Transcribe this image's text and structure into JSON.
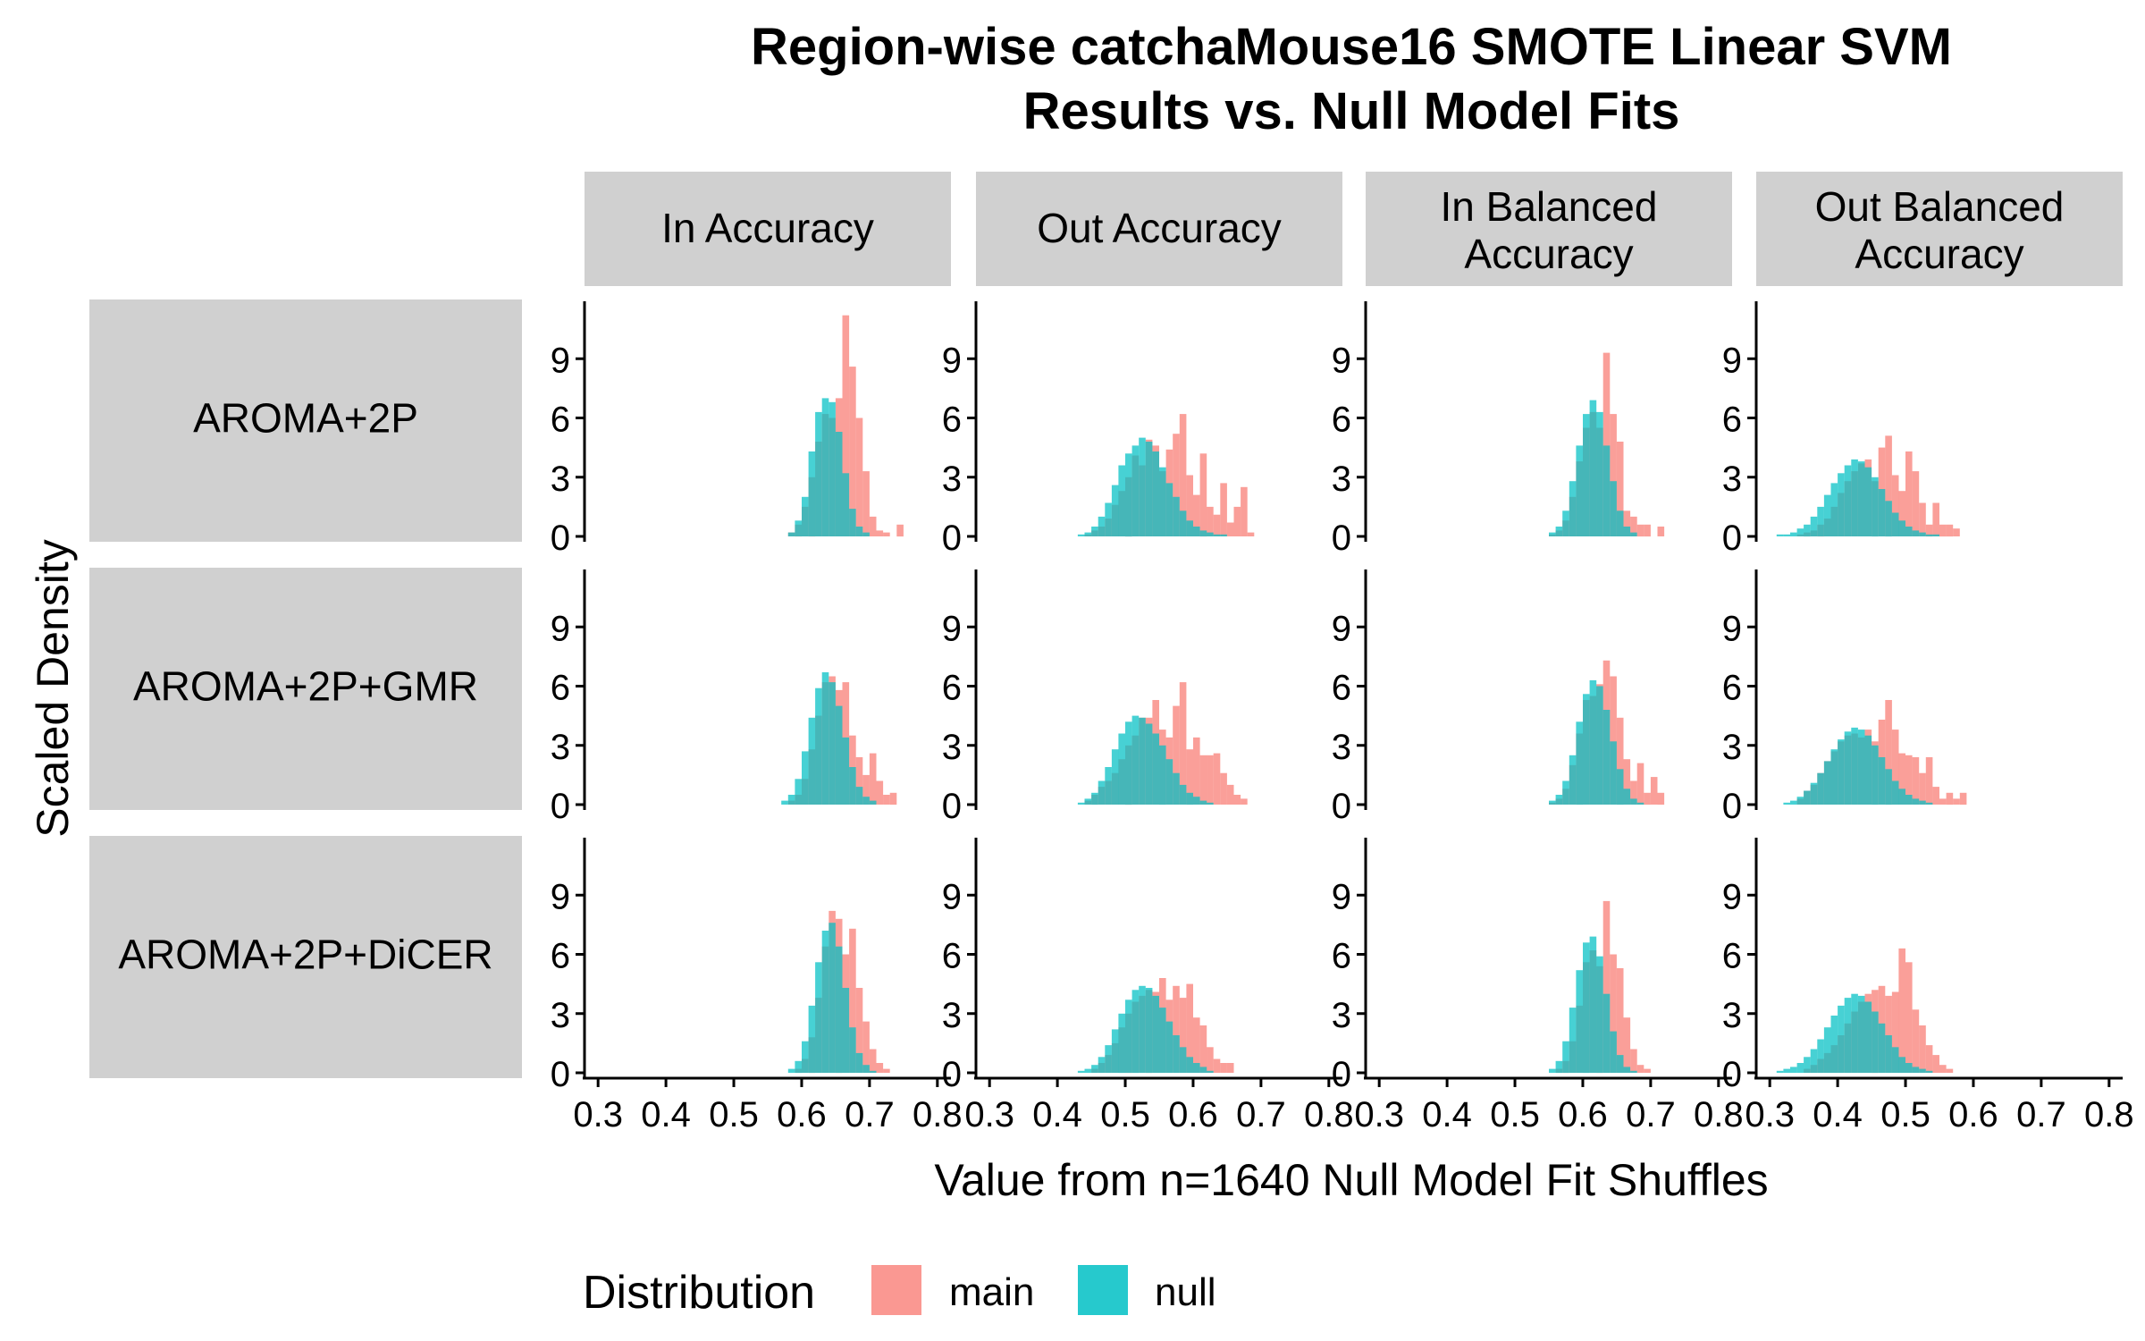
{
  "colors": {
    "main": "#F8766D",
    "null": "#00BFC4",
    "strip": "#D0D0D0",
    "axis": "#000000"
  },
  "chart_data": {
    "type": "histogram",
    "title": "Region-wise catchaMouse16 SMOTE Linear SVM\nResults vs. Null Model Fits",
    "xlabel": "Value from n=1640 Null Model Fit Shuffles",
    "ylabel": "Scaled Density",
    "xlim": [
      0.28,
      0.82
    ],
    "ylim": [
      0,
      12
    ],
    "x_ticks": [
      "0.3",
      "0.4",
      "0.5",
      "0.6",
      "0.7",
      "0.8"
    ],
    "y_ticks": [
      "0",
      "3",
      "6",
      "9"
    ],
    "bin_width": 0.01,
    "column_facets": [
      "In Accuracy",
      "Out Accuracy",
      "In Balanced\nAccuracy",
      "Out Balanced\nAccuracy"
    ],
    "row_facets": [
      "AROMA+2P",
      "AROMA+2P+GMR",
      "AROMA+2P+DiCER"
    ],
    "legend": {
      "title": "Distribution",
      "entries": [
        "main",
        "null"
      ],
      "position": "bottom"
    },
    "panels": [
      {
        "row": "AROMA+2P",
        "col": "In Accuracy",
        "main": {
          "x0": 0.58,
          "values": [
            0.2,
            0.6,
            1.5,
            3.0,
            4.8,
            6.2,
            6.0,
            7.0,
            11.2,
            8.6,
            6.0,
            3.3,
            1.0,
            0.3,
            0.2,
            0.0,
            0.6
          ]
        },
        "null": {
          "x0": 0.58,
          "values": [
            0.2,
            0.8,
            2.0,
            4.3,
            6.3,
            7.0,
            6.8,
            5.3,
            3.2,
            1.4,
            0.5,
            0.2
          ]
        }
      },
      {
        "row": "AROMA+2P",
        "col": "Out Accuracy",
        "main": {
          "x0": 0.44,
          "values": [
            0.1,
            0.3,
            0.5,
            0.9,
            1.6,
            2.3,
            3.0,
            4.1,
            3.6,
            4.9,
            4.6,
            3.3,
            4.4,
            5.2,
            6.2,
            3.1,
            2.1,
            4.2,
            1.5,
            1.1,
            2.7,
            0.7,
            1.5,
            2.5,
            0.2
          ]
        },
        "null": {
          "x0": 0.43,
          "values": [
            0.1,
            0.2,
            0.5,
            1.0,
            1.7,
            2.6,
            3.6,
            4.2,
            4.6,
            5.0,
            4.8,
            4.3,
            3.5,
            2.7,
            2.0,
            1.3,
            0.8,
            0.5,
            0.3,
            0.2,
            0.1,
            0.1
          ]
        }
      },
      {
        "row": "AROMA+2P",
        "col": "In Balanced\nAccuracy",
        "main": {
          "x0": 0.55,
          "values": [
            0.1,
            0.3,
            0.8,
            2.0,
            3.8,
            5.5,
            6.3,
            5.5,
            9.3,
            6.2,
            4.8,
            1.3,
            1.0,
            0.6,
            0.6,
            0.0,
            0.5
          ]
        },
        "null": {
          "x0": 0.55,
          "values": [
            0.2,
            0.5,
            1.3,
            2.8,
            4.6,
            6.2,
            6.9,
            6.3,
            4.6,
            2.8,
            1.3,
            0.5,
            0.2
          ]
        }
      },
      {
        "row": "AROMA+2P",
        "col": "Out Balanced\nAccuracy",
        "main": {
          "x0": 0.34,
          "values": [
            0.1,
            0.2,
            0.3,
            0.6,
            0.9,
            1.5,
            2.2,
            2.8,
            3.3,
            3.7,
            3.9,
            2.8,
            4.5,
            5.1,
            3.1,
            2.3,
            4.3,
            3.3,
            1.7,
            0.6,
            1.7,
            0.6,
            0.6,
            0.4
          ]
        },
        "null": {
          "x0": 0.31,
          "values": [
            0.1,
            0.1,
            0.2,
            0.4,
            0.6,
            1.0,
            1.5,
            2.1,
            2.7,
            3.2,
            3.6,
            3.9,
            3.8,
            3.5,
            3.0,
            2.4,
            1.8,
            1.2,
            0.8,
            0.5,
            0.3,
            0.2,
            0.1,
            0.1
          ]
        }
      },
      {
        "row": "AROMA+2P+GMR",
        "col": "In Accuracy",
        "main": {
          "x0": 0.58,
          "values": [
            0.2,
            0.5,
            1.3,
            2.8,
            4.5,
            6.2,
            6.5,
            5.8,
            6.2,
            3.5,
            2.4,
            1.5,
            2.6,
            1.2,
            0.5,
            0.6
          ]
        },
        "null": {
          "x0": 0.57,
          "values": [
            0.2,
            0.5,
            1.3,
            2.7,
            4.4,
            5.9,
            6.7,
            6.2,
            5.0,
            3.4,
            1.9,
            0.9,
            0.4,
            0.2
          ]
        }
      },
      {
        "row": "AROMA+2P+GMR",
        "col": "Out Accuracy",
        "main": {
          "x0": 0.44,
          "values": [
            0.2,
            0.5,
            0.9,
            1.2,
            1.6,
            2.3,
            3.0,
            3.5,
            4.4,
            4.4,
            5.3,
            3.8,
            3.4,
            5.0,
            6.2,
            2.8,
            3.4,
            2.5,
            2.5,
            2.6,
            1.6,
            1.0,
            0.5,
            0.3
          ]
        },
        "null": {
          "x0": 0.43,
          "values": [
            0.1,
            0.3,
            0.6,
            1.2,
            1.9,
            2.8,
            3.6,
            4.2,
            4.5,
            4.4,
            4.1,
            3.6,
            3.0,
            2.3,
            1.6,
            1.0,
            0.6,
            0.4,
            0.2,
            0.1
          ]
        }
      },
      {
        "row": "AROMA+2P+GMR",
        "col": "In Balanced\nAccuracy",
        "main": {
          "x0": 0.55,
          "values": [
            0.1,
            0.3,
            0.8,
            2.0,
            3.6,
            5.3,
            5.5,
            6.1,
            7.3,
            6.5,
            4.4,
            2.3,
            1.2,
            2.1,
            0.6,
            1.4,
            0.6
          ]
        },
        "null": {
          "x0": 0.55,
          "values": [
            0.2,
            0.5,
            1.2,
            2.5,
            4.2,
            5.6,
            6.3,
            6.0,
            4.8,
            3.2,
            1.8,
            0.8,
            0.3,
            0.1
          ]
        }
      },
      {
        "row": "AROMA+2P+GMR",
        "col": "Out Balanced\nAccuracy",
        "main": {
          "x0": 0.34,
          "values": [
            0.3,
            0.7,
            1.0,
            1.6,
            2.2,
            2.7,
            3.2,
            3.5,
            3.6,
            3.4,
            3.8,
            3.2,
            4.3,
            5.3,
            3.8,
            2.6,
            2.5,
            2.4,
            1.6,
            2.4,
            0.9,
            0.3,
            0.6,
            0.3,
            0.6
          ]
        },
        "null": {
          "x0": 0.32,
          "values": [
            0.1,
            0.2,
            0.4,
            0.7,
            1.1,
            1.6,
            2.2,
            2.8,
            3.3,
            3.7,
            3.9,
            3.8,
            3.5,
            3.0,
            2.4,
            1.8,
            1.2,
            0.8,
            0.5,
            0.3,
            0.2,
            0.1
          ]
        }
      },
      {
        "row": "AROMA+2P+DiCER",
        "col": "In Accuracy",
        "main": {
          "x0": 0.59,
          "values": [
            0.2,
            0.7,
            1.8,
            3.8,
            6.4,
            8.2,
            7.8,
            6.0,
            7.3,
            4.3,
            2.6,
            1.2,
            0.5,
            0.2
          ]
        },
        "null": {
          "x0": 0.58,
          "values": [
            0.2,
            0.6,
            1.6,
            3.4,
            5.6,
            7.2,
            7.6,
            6.4,
            4.3,
            2.3,
            1.0,
            0.4,
            0.1
          ]
        }
      },
      {
        "row": "AROMA+2P+DiCER",
        "col": "Out Accuracy",
        "main": {
          "x0": 0.45,
          "values": [
            0.2,
            0.5,
            0.9,
            1.5,
            2.3,
            3.0,
            3.6,
            3.9,
            4.2,
            4.1,
            4.8,
            3.7,
            4.4,
            3.8,
            4.5,
            2.8,
            2.4,
            1.3,
            0.7,
            0.5,
            0.5
          ]
        },
        "null": {
          "x0": 0.43,
          "values": [
            0.1,
            0.2,
            0.4,
            0.8,
            1.4,
            2.2,
            3.0,
            3.7,
            4.2,
            4.4,
            4.3,
            3.9,
            3.3,
            2.6,
            1.9,
            1.3,
            0.8,
            0.5,
            0.3,
            0.1
          ]
        }
      },
      {
        "row": "AROMA+2P+DiCER",
        "col": "In Balanced\nAccuracy",
        "main": {
          "x0": 0.56,
          "values": [
            0.2,
            0.6,
            1.6,
            3.4,
            5.6,
            6.2,
            5.4,
            8.7,
            6.0,
            5.3,
            2.8,
            1.2,
            0.4,
            0.2
          ]
        },
        "null": {
          "x0": 0.55,
          "values": [
            0.2,
            0.6,
            1.6,
            3.3,
            5.2,
            6.6,
            6.9,
            5.9,
            4.0,
            2.1,
            0.9,
            0.3,
            0.1
          ]
        }
      },
      {
        "row": "AROMA+2P+DiCER",
        "col": "Out Balanced\nAccuracy",
        "main": {
          "x0": 0.35,
          "values": [
            0.2,
            0.4,
            0.7,
            1.0,
            1.4,
            1.9,
            2.5,
            3.1,
            3.6,
            4.0,
            4.2,
            4.4,
            3.9,
            4.1,
            6.3,
            5.6,
            3.2,
            2.4,
            1.4,
            0.9,
            0.4,
            0.2
          ]
        },
        "null": {
          "x0": 0.31,
          "values": [
            0.1,
            0.2,
            0.3,
            0.5,
            0.8,
            1.2,
            1.7,
            2.3,
            2.9,
            3.4,
            3.8,
            4.0,
            3.9,
            3.6,
            3.1,
            2.5,
            1.9,
            1.3,
            0.8,
            0.5,
            0.3,
            0.2,
            0.1
          ]
        }
      }
    ]
  }
}
